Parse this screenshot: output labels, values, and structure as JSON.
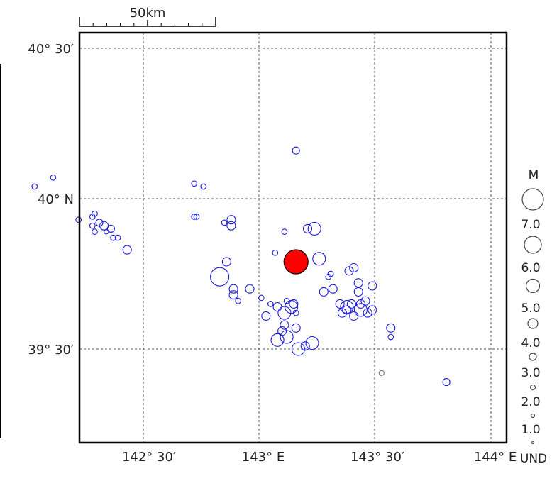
{
  "scale_bar": {
    "label": "50km"
  },
  "lat_labels": [
    "40° 30′",
    "40° N",
    "39° 30′"
  ],
  "lon_labels": [
    "142° 30′",
    "143° E",
    "143° 30′",
    "144° E"
  ],
  "legend": {
    "title": "M",
    "entries": [
      "7.0",
      "6.0",
      "5.0",
      "4.0",
      "3.0",
      "2.0",
      "1.0",
      "UND"
    ]
  },
  "colors": {
    "event": "#1a1adb",
    "mainshock": "#ff0000",
    "grid": "#555555",
    "frame": "#000000"
  },
  "chart_data": {
    "type": "scatter",
    "x_unit": "longitude_deg_E",
    "y_unit": "latitude_deg_N",
    "xlim": [
      141.73,
      144.06
    ],
    "ylim": [
      39.13,
      40.55
    ],
    "mainshock": {
      "lon": 143.16,
      "lat": 39.79,
      "mag": 8.0
    },
    "events": [
      {
        "lon": 142.11,
        "lat": 40.07,
        "mag": 4.0
      },
      {
        "lon": 142.03,
        "lat": 40.04,
        "mag": 4.0
      },
      {
        "lon": 143.16,
        "lat": 40.16,
        "mag": 4.6
      },
      {
        "lon": 142.72,
        "lat": 40.05,
        "mag": 4.0
      },
      {
        "lon": 142.76,
        "lat": 40.04,
        "mag": 4.0
      },
      {
        "lon": 142.22,
        "lat": 39.93,
        "mag": 4.0
      },
      {
        "lon": 142.28,
        "lat": 39.94,
        "mag": 4.0
      },
      {
        "lon": 142.29,
        "lat": 39.95,
        "mag": 4.0
      },
      {
        "lon": 142.28,
        "lat": 39.91,
        "mag": 4.0
      },
      {
        "lon": 142.31,
        "lat": 39.92,
        "mag": 4.6
      },
      {
        "lon": 142.33,
        "lat": 39.91,
        "mag": 5.0
      },
      {
        "lon": 142.36,
        "lat": 39.9,
        "mag": 4.6
      },
      {
        "lon": 142.34,
        "lat": 39.89,
        "mag": 3.6
      },
      {
        "lon": 142.37,
        "lat": 39.87,
        "mag": 4.0
      },
      {
        "lon": 142.39,
        "lat": 39.87,
        "mag": 4.0
      },
      {
        "lon": 142.29,
        "lat": 39.89,
        "mag": 4.0
      },
      {
        "lon": 142.43,
        "lat": 39.83,
        "mag": 5.0
      },
      {
        "lon": 142.72,
        "lat": 39.94,
        "mag": 4.0
      },
      {
        "lon": 142.73,
        "lat": 39.94,
        "mag": 4.0
      },
      {
        "lon": 142.88,
        "lat": 39.93,
        "mag": 5.0
      },
      {
        "lon": 142.88,
        "lat": 39.91,
        "mag": 5.0
      },
      {
        "lon": 142.85,
        "lat": 39.92,
        "mag": 4.0
      },
      {
        "lon": 143.11,
        "lat": 39.89,
        "mag": 4.0
      },
      {
        "lon": 143.21,
        "lat": 39.9,
        "mag": 5.0
      },
      {
        "lon": 143.24,
        "lat": 39.9,
        "mag": 6.0
      },
      {
        "lon": 143.26,
        "lat": 39.8,
        "mag": 6.0
      },
      {
        "lon": 143.07,
        "lat": 39.82,
        "mag": 4.0
      },
      {
        "lon": 142.86,
        "lat": 39.79,
        "mag": 5.0
      },
      {
        "lon": 142.83,
        "lat": 39.74,
        "mag": 7.0
      },
      {
        "lon": 142.89,
        "lat": 39.7,
        "mag": 5.0
      },
      {
        "lon": 142.89,
        "lat": 39.68,
        "mag": 5.0
      },
      {
        "lon": 142.91,
        "lat": 39.66,
        "mag": 4.0
      },
      {
        "lon": 142.96,
        "lat": 39.7,
        "mag": 5.0
      },
      {
        "lon": 143.01,
        "lat": 39.67,
        "mag": 4.0
      },
      {
        "lon": 143.03,
        "lat": 39.61,
        "mag": 5.0
      },
      {
        "lon": 143.05,
        "lat": 39.65,
        "mag": 4.0
      },
      {
        "lon": 143.08,
        "lat": 39.64,
        "mag": 5.0
      },
      {
        "lon": 143.12,
        "lat": 39.66,
        "mag": 4.0
      },
      {
        "lon": 143.15,
        "lat": 39.65,
        "mag": 5.0
      },
      {
        "lon": 143.14,
        "lat": 39.64,
        "mag": 6.0
      },
      {
        "lon": 143.11,
        "lat": 39.62,
        "mag": 6.0
      },
      {
        "lon": 143.16,
        "lat": 39.62,
        "mag": 4.0
      },
      {
        "lon": 143.16,
        "lat": 39.57,
        "mag": 5.0
      },
      {
        "lon": 143.11,
        "lat": 39.58,
        "mag": 5.0
      },
      {
        "lon": 143.08,
        "lat": 39.53,
        "mag": 6.0
      },
      {
        "lon": 143.12,
        "lat": 39.54,
        "mag": 6.0
      },
      {
        "lon": 143.23,
        "lat": 39.52,
        "mag": 6.0
      },
      {
        "lon": 143.17,
        "lat": 39.5,
        "mag": 6.0
      },
      {
        "lon": 143.2,
        "lat": 39.51,
        "mag": 5.0
      },
      {
        "lon": 143.1,
        "lat": 39.56,
        "mag": 5.0
      },
      {
        "lon": 143.28,
        "lat": 39.69,
        "mag": 5.0
      },
      {
        "lon": 143.3,
        "lat": 39.74,
        "mag": 4.0
      },
      {
        "lon": 143.32,
        "lat": 39.7,
        "mag": 5.0
      },
      {
        "lon": 143.35,
        "lat": 39.65,
        "mag": 5.0
      },
      {
        "lon": 143.38,
        "lat": 39.63,
        "mag": 5.0
      },
      {
        "lon": 143.38,
        "lat": 39.64,
        "mag": 6.0
      },
      {
        "lon": 143.4,
        "lat": 39.65,
        "mag": 5.0
      },
      {
        "lon": 143.41,
        "lat": 39.61,
        "mag": 5.0
      },
      {
        "lon": 143.41,
        "lat": 39.77,
        "mag": 5.0
      },
      {
        "lon": 143.39,
        "lat": 39.76,
        "mag": 5.0
      },
      {
        "lon": 143.43,
        "lat": 39.69,
        "mag": 5.0
      },
      {
        "lon": 143.44,
        "lat": 39.65,
        "mag": 5.0
      },
      {
        "lon": 143.46,
        "lat": 39.66,
        "mag": 5.0
      },
      {
        "lon": 143.44,
        "lat": 39.63,
        "mag": 6.0
      },
      {
        "lon": 143.47,
        "lat": 39.62,
        "mag": 5.0
      },
      {
        "lon": 143.49,
        "lat": 39.63,
        "mag": 5.0
      },
      {
        "lon": 143.49,
        "lat": 39.71,
        "mag": 5.0
      },
      {
        "lon": 143.43,
        "lat": 39.72,
        "mag": 5.0
      },
      {
        "lon": 143.36,
        "lat": 39.62,
        "mag": 5.0
      },
      {
        "lon": 143.31,
        "lat": 39.75,
        "mag": 4.0
      },
      {
        "lon": 143.57,
        "lat": 39.57,
        "mag": 5.0
      },
      {
        "lon": 143.57,
        "lat": 39.54,
        "mag": 4.0
      },
      {
        "lon": 143.53,
        "lat": 39.42,
        "mag": 3.0
      },
      {
        "lon": 143.81,
        "lat": 39.39,
        "mag": 4.6
      }
    ]
  }
}
